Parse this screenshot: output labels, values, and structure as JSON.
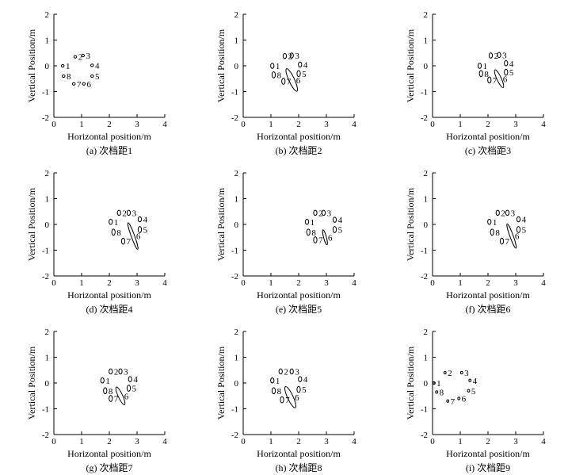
{
  "chart_data": [
    {
      "id": "a",
      "caption": "(a) 次档距1",
      "type": "scatter",
      "xlabel": "Horizontal position/m",
      "ylabel": "Vertical Position/m",
      "xlim": [
        0,
        4
      ],
      "ylim": [
        -2,
        2
      ],
      "xticks": [
        0,
        1,
        2,
        3,
        4
      ],
      "yticks": [
        -2,
        -1,
        0,
        1,
        2
      ],
      "points": [
        {
          "label": "1",
          "x": 0.32,
          "y": 0.0,
          "ex": 0.05,
          "ey": 0.05,
          "angle": 0
        },
        {
          "label": "2",
          "x": 0.77,
          "y": 0.35,
          "ex": 0.05,
          "ey": 0.05,
          "angle": 0
        },
        {
          "label": "3",
          "x": 1.05,
          "y": 0.4,
          "ex": 0.05,
          "ey": 0.05,
          "angle": 0
        },
        {
          "label": "4",
          "x": 1.38,
          "y": 0.02,
          "ex": 0.05,
          "ey": 0.05,
          "angle": 0
        },
        {
          "label": "5",
          "x": 1.38,
          "y": -0.4,
          "ex": 0.05,
          "ey": 0.05,
          "angle": 0
        },
        {
          "label": "6",
          "x": 1.08,
          "y": -0.7,
          "ex": 0.05,
          "ey": 0.05,
          "angle": 0
        },
        {
          "label": "7",
          "x": 0.72,
          "y": -0.7,
          "ex": 0.05,
          "ey": 0.05,
          "angle": 0
        },
        {
          "label": "8",
          "x": 0.35,
          "y": -0.4,
          "ex": 0.05,
          "ey": 0.05,
          "angle": 0
        }
      ]
    },
    {
      "id": "b",
      "caption": "(b) 次档距2",
      "type": "scatter",
      "xlabel": "Horizontal position/m",
      "ylabel": "Vertical Position/m",
      "xlim": [
        0,
        4
      ],
      "ylim": [
        -2,
        2
      ],
      "xticks": [
        0,
        1,
        2,
        3,
        4
      ],
      "yticks": [
        -2,
        -1,
        0,
        1,
        2
      ],
      "points": [
        {
          "label": "1",
          "x": 1.05,
          "y": 0.0,
          "ex": 0.06,
          "ey": 0.1,
          "angle": 0
        },
        {
          "label": "2",
          "x": 1.5,
          "y": 0.38,
          "ex": 0.06,
          "ey": 0.1,
          "angle": 0
        },
        {
          "label": "3",
          "x": 1.75,
          "y": 0.4,
          "ex": 0.06,
          "ey": 0.1,
          "angle": 0
        },
        {
          "label": "4",
          "x": 2.05,
          "y": 0.05,
          "ex": 0.06,
          "ey": 0.1,
          "angle": 0
        },
        {
          "label": "5",
          "x": 2.0,
          "y": -0.3,
          "ex": 0.06,
          "ey": 0.12,
          "angle": 0
        },
        {
          "label": "6",
          "x": 1.75,
          "y": -0.55,
          "ex": 0.1,
          "ey": 0.48,
          "angle": 25
        },
        {
          "label": "7",
          "x": 1.45,
          "y": -0.6,
          "ex": 0.06,
          "ey": 0.12,
          "angle": 0
        },
        {
          "label": "8",
          "x": 1.1,
          "y": -0.35,
          "ex": 0.06,
          "ey": 0.12,
          "angle": 0
        }
      ]
    },
    {
      "id": "c",
      "caption": "(c) 次档距3",
      "type": "scatter",
      "xlabel": "Horizontal position/m",
      "ylabel": "Vertical Position/m",
      "xlim": [
        0,
        4
      ],
      "ylim": [
        -2,
        2
      ],
      "xticks": [
        0,
        1,
        2,
        3,
        4
      ],
      "yticks": [
        -2,
        -1,
        0,
        1,
        2
      ],
      "points": [
        {
          "label": "1",
          "x": 1.7,
          "y": 0.0,
          "ex": 0.06,
          "ey": 0.1,
          "angle": 0
        },
        {
          "label": "2",
          "x": 2.1,
          "y": 0.4,
          "ex": 0.06,
          "ey": 0.1,
          "angle": 0
        },
        {
          "label": "3",
          "x": 2.4,
          "y": 0.42,
          "ex": 0.06,
          "ey": 0.1,
          "angle": 0
        },
        {
          "label": "4",
          "x": 2.65,
          "y": 0.1,
          "ex": 0.06,
          "ey": 0.1,
          "angle": 0
        },
        {
          "label": "5",
          "x": 2.65,
          "y": -0.25,
          "ex": 0.06,
          "ey": 0.12,
          "angle": 0
        },
        {
          "label": "6",
          "x": 2.4,
          "y": -0.5,
          "ex": 0.08,
          "ey": 0.38,
          "angle": 25
        },
        {
          "label": "7",
          "x": 2.05,
          "y": -0.55,
          "ex": 0.06,
          "ey": 0.12,
          "angle": 0
        },
        {
          "label": "8",
          "x": 1.75,
          "y": -0.3,
          "ex": 0.06,
          "ey": 0.12,
          "angle": 0
        }
      ]
    },
    {
      "id": "d",
      "caption": "(d) 次档距4",
      "type": "scatter",
      "xlabel": "Horizontal position/m",
      "ylabel": "Vertical Position/m",
      "xlim": [
        0,
        4
      ],
      "ylim": [
        -2,
        2
      ],
      "xticks": [
        0,
        1,
        2,
        3,
        4
      ],
      "yticks": [
        -2,
        -1,
        0,
        1,
        2
      ],
      "points": [
        {
          "label": "1",
          "x": 2.05,
          "y": 0.1,
          "ex": 0.06,
          "ey": 0.1,
          "angle": 0
        },
        {
          "label": "2",
          "x": 2.35,
          "y": 0.45,
          "ex": 0.06,
          "ey": 0.1,
          "angle": 0
        },
        {
          "label": "3",
          "x": 2.7,
          "y": 0.45,
          "ex": 0.06,
          "ey": 0.1,
          "angle": 0
        },
        {
          "label": "4",
          "x": 3.1,
          "y": 0.2,
          "ex": 0.06,
          "ey": 0.1,
          "angle": 0
        },
        {
          "label": "5",
          "x": 3.1,
          "y": -0.2,
          "ex": 0.06,
          "ey": 0.12,
          "angle": 0
        },
        {
          "label": "6",
          "x": 2.85,
          "y": -0.45,
          "ex": 0.06,
          "ey": 0.55,
          "angle": 20
        },
        {
          "label": "7",
          "x": 2.5,
          "y": -0.65,
          "ex": 0.06,
          "ey": 0.12,
          "angle": 0
        },
        {
          "label": "8",
          "x": 2.15,
          "y": -0.3,
          "ex": 0.06,
          "ey": 0.12,
          "angle": 0
        }
      ]
    },
    {
      "id": "e",
      "caption": "(e) 次档距5",
      "type": "scatter",
      "xlabel": "Horizontal position/m",
      "ylabel": "Vertical Position/m",
      "xlim": [
        0,
        4
      ],
      "ylim": [
        -2,
        2
      ],
      "xticks": [
        0,
        1,
        2,
        3,
        4
      ],
      "yticks": [
        -2,
        -1,
        0,
        1,
        2
      ],
      "points": [
        {
          "label": "1",
          "x": 2.3,
          "y": 0.1,
          "ex": 0.06,
          "ey": 0.1,
          "angle": 0
        },
        {
          "label": "2",
          "x": 2.6,
          "y": 0.45,
          "ex": 0.06,
          "ey": 0.1,
          "angle": 0
        },
        {
          "label": "3",
          "x": 2.9,
          "y": 0.45,
          "ex": 0.06,
          "ey": 0.1,
          "angle": 0
        },
        {
          "label": "4",
          "x": 3.3,
          "y": 0.18,
          "ex": 0.06,
          "ey": 0.1,
          "angle": 0
        },
        {
          "label": "5",
          "x": 3.3,
          "y": -0.2,
          "ex": 0.06,
          "ey": 0.12,
          "angle": 0
        },
        {
          "label": "6",
          "x": 2.95,
          "y": -0.5,
          "ex": 0.05,
          "ey": 0.3,
          "angle": 15
        },
        {
          "label": "7",
          "x": 2.6,
          "y": -0.6,
          "ex": 0.06,
          "ey": 0.12,
          "angle": 0
        },
        {
          "label": "8",
          "x": 2.35,
          "y": -0.3,
          "ex": 0.06,
          "ey": 0.12,
          "angle": 0
        }
      ]
    },
    {
      "id": "f",
      "caption": "(f) 次档距6",
      "type": "scatter",
      "xlabel": "Horizontal position/m",
      "ylabel": "Vertical Position/m",
      "xlim": [
        0,
        4
      ],
      "ylim": [
        -2,
        2
      ],
      "xticks": [
        0,
        1,
        2,
        3,
        4
      ],
      "yticks": [
        -2,
        -1,
        0,
        1,
        2
      ],
      "points": [
        {
          "label": "1",
          "x": 2.05,
          "y": 0.1,
          "ex": 0.06,
          "ey": 0.1,
          "angle": 0
        },
        {
          "label": "2",
          "x": 2.35,
          "y": 0.45,
          "ex": 0.06,
          "ey": 0.1,
          "angle": 0
        },
        {
          "label": "3",
          "x": 2.7,
          "y": 0.45,
          "ex": 0.06,
          "ey": 0.1,
          "angle": 0
        },
        {
          "label": "4",
          "x": 3.1,
          "y": 0.2,
          "ex": 0.06,
          "ey": 0.1,
          "angle": 0
        },
        {
          "label": "5",
          "x": 3.1,
          "y": -0.2,
          "ex": 0.06,
          "ey": 0.12,
          "angle": 0
        },
        {
          "label": "6",
          "x": 2.85,
          "y": -0.45,
          "ex": 0.06,
          "ey": 0.5,
          "angle": 20
        },
        {
          "label": "7",
          "x": 2.5,
          "y": -0.65,
          "ex": 0.06,
          "ey": 0.12,
          "angle": 0
        },
        {
          "label": "8",
          "x": 2.15,
          "y": -0.3,
          "ex": 0.06,
          "ey": 0.12,
          "angle": 0
        }
      ]
    },
    {
      "id": "g",
      "caption": "(g) 次档距7",
      "type": "scatter",
      "xlabel": "Horizontal position/m",
      "ylabel": "Vertical Position/m",
      "xlim": [
        0,
        4
      ],
      "ylim": [
        -2,
        2
      ],
      "xticks": [
        0,
        1,
        2,
        3,
        4
      ],
      "yticks": [
        -2,
        -1,
        0,
        1,
        2
      ],
      "points": [
        {
          "label": "1",
          "x": 1.75,
          "y": 0.1,
          "ex": 0.06,
          "ey": 0.1,
          "angle": 0
        },
        {
          "label": "2",
          "x": 2.05,
          "y": 0.45,
          "ex": 0.06,
          "ey": 0.1,
          "angle": 0
        },
        {
          "label": "3",
          "x": 2.4,
          "y": 0.45,
          "ex": 0.06,
          "ey": 0.1,
          "angle": 0
        },
        {
          "label": "4",
          "x": 2.75,
          "y": 0.15,
          "ex": 0.06,
          "ey": 0.1,
          "angle": 0
        },
        {
          "label": "5",
          "x": 2.7,
          "y": -0.2,
          "ex": 0.06,
          "ey": 0.12,
          "angle": 0
        },
        {
          "label": "6",
          "x": 2.4,
          "y": -0.5,
          "ex": 0.08,
          "ey": 0.38,
          "angle": 25
        },
        {
          "label": "7",
          "x": 2.05,
          "y": -0.6,
          "ex": 0.06,
          "ey": 0.12,
          "angle": 0
        },
        {
          "label": "8",
          "x": 1.85,
          "y": -0.3,
          "ex": 0.06,
          "ey": 0.12,
          "angle": 0
        }
      ]
    },
    {
      "id": "h",
      "caption": "(h) 次档距8",
      "type": "scatter",
      "xlabel": "Horizontal position/m",
      "ylabel": "Vertical Position/m",
      "xlim": [
        0,
        4
      ],
      "ylim": [
        -2,
        2
      ],
      "xticks": [
        0,
        1,
        2,
        3,
        4
      ],
      "yticks": [
        -2,
        -1,
        0,
        1,
        2
      ],
      "points": [
        {
          "label": "1",
          "x": 1.05,
          "y": 0.1,
          "ex": 0.06,
          "ey": 0.1,
          "angle": 0
        },
        {
          "label": "2",
          "x": 1.35,
          "y": 0.45,
          "ex": 0.06,
          "ey": 0.1,
          "angle": 0
        },
        {
          "label": "3",
          "x": 1.75,
          "y": 0.45,
          "ex": 0.06,
          "ey": 0.1,
          "angle": 0
        },
        {
          "label": "4",
          "x": 2.05,
          "y": 0.15,
          "ex": 0.06,
          "ey": 0.1,
          "angle": 0
        },
        {
          "label": "5",
          "x": 2.0,
          "y": -0.25,
          "ex": 0.06,
          "ey": 0.12,
          "angle": 0
        },
        {
          "label": "6",
          "x": 1.7,
          "y": -0.55,
          "ex": 0.1,
          "ey": 0.45,
          "angle": 25
        },
        {
          "label": "7",
          "x": 1.4,
          "y": -0.65,
          "ex": 0.06,
          "ey": 0.12,
          "angle": 0
        },
        {
          "label": "8",
          "x": 1.1,
          "y": -0.3,
          "ex": 0.06,
          "ey": 0.12,
          "angle": 0
        }
      ]
    },
    {
      "id": "i",
      "caption": "(i) 次档距9",
      "type": "scatter",
      "xlabel": "Horizontal position/m",
      "ylabel": "Vertical Position/m",
      "xlim": [
        0,
        4
      ],
      "ylim": [
        -2,
        2
      ],
      "xticks": [
        0,
        1,
        2,
        3,
        4
      ],
      "yticks": [
        -2,
        -1,
        0,
        1,
        2
      ],
      "points": [
        {
          "label": "1",
          "x": 0.05,
          "y": 0.0,
          "ex": 0.04,
          "ey": 0.05,
          "angle": 0
        },
        {
          "label": "2",
          "x": 0.45,
          "y": 0.4,
          "ex": 0.04,
          "ey": 0.05,
          "angle": 0
        },
        {
          "label": "3",
          "x": 1.05,
          "y": 0.4,
          "ex": 0.04,
          "ey": 0.05,
          "angle": 0
        },
        {
          "label": "4",
          "x": 1.35,
          "y": 0.1,
          "ex": 0.04,
          "ey": 0.05,
          "angle": 0
        },
        {
          "label": "5",
          "x": 1.3,
          "y": -0.3,
          "ex": 0.04,
          "ey": 0.05,
          "angle": 0
        },
        {
          "label": "6",
          "x": 0.95,
          "y": -0.6,
          "ex": 0.04,
          "ey": 0.05,
          "angle": 0
        },
        {
          "label": "7",
          "x": 0.55,
          "y": -0.7,
          "ex": 0.04,
          "ey": 0.05,
          "angle": 0
        },
        {
          "label": "8",
          "x": 0.15,
          "y": -0.35,
          "ex": 0.04,
          "ey": 0.05,
          "angle": 0
        }
      ]
    }
  ]
}
